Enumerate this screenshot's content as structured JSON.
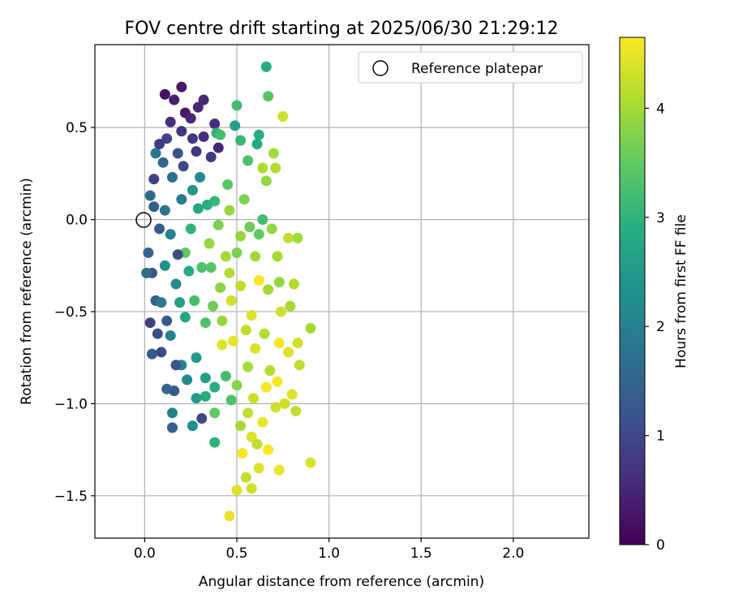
{
  "chart_data": {
    "type": "scatter",
    "title": "FOV centre drift starting at 2025/06/30 21:29:12",
    "xlabel": "Angular distance from reference (arcmin)",
    "ylabel": "Rotation from reference (arcmin)",
    "xlim": [
      -0.27,
      2.41
    ],
    "ylim": [
      -1.73,
      0.95
    ],
    "xticks": [
      0.0,
      0.5,
      1.0,
      1.5,
      2.0
    ],
    "yticks": [
      -1.5,
      -1.0,
      -0.5,
      0.0,
      0.5
    ],
    "xtick_labels": [
      "0.0",
      "0.5",
      "1.0",
      "1.5",
      "2.0"
    ],
    "ytick_labels": [
      "−1.5",
      "−1.0",
      "−0.5",
      "0.0",
      "0.5"
    ],
    "grid": true,
    "legend": {
      "position": "top-right",
      "entries": [
        "Reference platepar"
      ]
    },
    "reference_point": {
      "x": 0.0,
      "y": 0.0,
      "label": "Reference platepar"
    },
    "colorbar": {
      "label": "Hours from first FF file",
      "range": [
        0,
        4.65
      ],
      "ticks": [
        0,
        1,
        2,
        3,
        4
      ],
      "tick_labels": [
        "0",
        "1",
        "2",
        "3",
        "4"
      ],
      "colormap": "viridis"
    },
    "scatter_description_points": [
      {
        "x": 0.11,
        "y": 0.68,
        "h": 0.2
      },
      {
        "x": 0.2,
        "y": 0.72,
        "h": 0.3
      },
      {
        "x": 0.16,
        "y": 0.65,
        "h": 0.4
      },
      {
        "x": 0.22,
        "y": 0.58,
        "h": 0.3
      },
      {
        "x": 0.32,
        "y": 0.65,
        "h": 0.5
      },
      {
        "x": 0.29,
        "y": 0.61,
        "h": 0.5
      },
      {
        "x": 0.14,
        "y": 0.53,
        "h": 0.6
      },
      {
        "x": 0.38,
        "y": 0.52,
        "h": 0.6
      },
      {
        "x": 0.25,
        "y": 0.55,
        "h": 0.5
      },
      {
        "x": 0.2,
        "y": 0.48,
        "h": 0.7
      },
      {
        "x": 0.4,
        "y": 0.39,
        "h": 0.5
      },
      {
        "x": 0.32,
        "y": 0.45,
        "h": 0.6
      },
      {
        "x": 0.08,
        "y": 0.41,
        "h": 0.8
      },
      {
        "x": 0.12,
        "y": 0.44,
        "h": 0.9
      },
      {
        "x": 0.05,
        "y": 0.22,
        "h": 0.9
      },
      {
        "x": 0.28,
        "y": 0.37,
        "h": 0.7
      },
      {
        "x": 0.36,
        "y": 0.34,
        "h": 0.8
      },
      {
        "x": 0.66,
        "y": 0.83,
        "h": 2.8
      },
      {
        "x": 0.5,
        "y": 0.62,
        "h": 3.2
      },
      {
        "x": 0.67,
        "y": 0.67,
        "h": 3.4
      },
      {
        "x": 0.75,
        "y": 0.56,
        "h": 4.3
      },
      {
        "x": 0.49,
        "y": 0.51,
        "h": 2.6
      },
      {
        "x": 0.62,
        "y": 0.46,
        "h": 2.9
      },
      {
        "x": 0.52,
        "y": 0.43,
        "h": 3.1
      },
      {
        "x": 0.61,
        "y": 0.41,
        "h": 2.8
      },
      {
        "x": 0.39,
        "y": 0.47,
        "h": 3.0
      },
      {
        "x": 0.41,
        "y": 0.46,
        "h": 3.2
      },
      {
        "x": 0.7,
        "y": 0.36,
        "h": 4.0
      },
      {
        "x": 0.56,
        "y": 0.32,
        "h": 3.3
      },
      {
        "x": 0.71,
        "y": 0.28,
        "h": 4.1
      },
      {
        "x": 0.64,
        "y": 0.28,
        "h": 4.1
      },
      {
        "x": 0.66,
        "y": 0.21,
        "h": 3.9
      },
      {
        "x": 0.06,
        "y": 0.36,
        "h": 1.8
      },
      {
        "x": 0.1,
        "y": 0.31,
        "h": 1.5
      },
      {
        "x": 0.18,
        "y": 0.36,
        "h": 1.2
      },
      {
        "x": 0.03,
        "y": 0.13,
        "h": 1.6
      },
      {
        "x": 0.05,
        "y": 0.07,
        "h": 1.4
      },
      {
        "x": 0.08,
        "y": -0.05,
        "h": 1.3
      },
      {
        "x": 0.02,
        "y": -0.18,
        "h": 1.5
      },
      {
        "x": 0.04,
        "y": -0.29,
        "h": 1.2
      },
      {
        "x": 0.01,
        "y": -0.29,
        "h": 1.6
      },
      {
        "x": 0.06,
        "y": -0.44,
        "h": 1.4
      },
      {
        "x": 0.03,
        "y": -0.56,
        "h": 0.9
      },
      {
        "x": 0.07,
        "y": -0.62,
        "h": 1.1
      },
      {
        "x": 0.04,
        "y": -0.73,
        "h": 1.3
      },
      {
        "x": 0.09,
        "y": -0.72,
        "h": 1.0
      },
      {
        "x": 0.12,
        "y": -0.92,
        "h": 1.5
      },
      {
        "x": 0.16,
        "y": -0.93,
        "h": 1.3
      },
      {
        "x": 0.15,
        "y": -1.13,
        "h": 1.4
      },
      {
        "x": 0.15,
        "y": -1.05,
        "h": 2.0
      },
      {
        "x": 0.26,
        "y": -1.12,
        "h": 2.3
      },
      {
        "x": 0.31,
        "y": -1.08,
        "h": 1.0
      },
      {
        "x": 0.38,
        "y": -1.21,
        "h": 3.0
      },
      {
        "x": 0.38,
        "y": -1.05,
        "h": 3.5
      },
      {
        "x": 0.33,
        "y": -0.96,
        "h": 2.8
      },
      {
        "x": 0.47,
        "y": -0.98,
        "h": 3.3
      },
      {
        "x": 0.46,
        "y": -1.61,
        "h": 4.5
      },
      {
        "x": 0.5,
        "y": -1.47,
        "h": 4.4
      },
      {
        "x": 0.55,
        "y": -1.4,
        "h": 4.2
      },
      {
        "x": 0.58,
        "y": -1.46,
        "h": 4.3
      },
      {
        "x": 0.62,
        "y": -1.35,
        "h": 4.4
      },
      {
        "x": 0.73,
        "y": -1.36,
        "h": 4.5
      },
      {
        "x": 0.9,
        "y": -1.32,
        "h": 4.4
      },
      {
        "x": 0.53,
        "y": -1.27,
        "h": 4.6
      },
      {
        "x": 0.67,
        "y": -1.25,
        "h": 4.6
      },
      {
        "x": 0.58,
        "y": -1.18,
        "h": 4.4
      },
      {
        "x": 0.64,
        "y": -1.1,
        "h": 4.5
      },
      {
        "x": 0.56,
        "y": -1.05,
        "h": 4.2
      },
      {
        "x": 0.76,
        "y": -1.0,
        "h": 4.3
      },
      {
        "x": 0.82,
        "y": -1.04,
        "h": 4.2
      },
      {
        "x": 0.8,
        "y": -0.95,
        "h": 4.4
      },
      {
        "x": 0.84,
        "y": -0.79,
        "h": 4.2
      },
      {
        "x": 0.9,
        "y": -0.59,
        "h": 4.0
      },
      {
        "x": 0.83,
        "y": -0.67,
        "h": 4.3
      },
      {
        "x": 0.78,
        "y": -0.72,
        "h": 4.4
      },
      {
        "x": 0.72,
        "y": -0.88,
        "h": 4.6
      },
      {
        "x": 0.68,
        "y": -0.82,
        "h": 4.1
      },
      {
        "x": 0.67,
        "y": -0.38,
        "h": 4.0
      },
      {
        "x": 0.74,
        "y": -0.5,
        "h": 4.3
      },
      {
        "x": 0.79,
        "y": -0.47,
        "h": 4.0
      },
      {
        "x": 0.81,
        "y": -0.35,
        "h": 4.1
      },
      {
        "x": 0.73,
        "y": -0.34,
        "h": 3.9
      },
      {
        "x": 0.72,
        "y": -0.2,
        "h": 4.0
      },
      {
        "x": 0.83,
        "y": -0.1,
        "h": 4.0
      },
      {
        "x": 0.78,
        "y": -0.1,
        "h": 4.2
      },
      {
        "x": 0.69,
        "y": -0.05,
        "h": 3.9
      },
      {
        "x": 0.62,
        "y": -0.08,
        "h": 3.5
      },
      {
        "x": 0.57,
        "y": -0.04,
        "h": 3.6
      },
      {
        "x": 0.5,
        "y": -0.18,
        "h": 3.7
      },
      {
        "x": 0.47,
        "y": -0.44,
        "h": 4.3
      },
      {
        "x": 0.48,
        "y": -0.66,
        "h": 4.5
      },
      {
        "x": 0.58,
        "y": -0.52,
        "h": 4.4
      },
      {
        "x": 0.62,
        "y": -0.33,
        "h": 4.6
      },
      {
        "x": 0.56,
        "y": -0.8,
        "h": 4.0
      },
      {
        "x": 0.42,
        "y": -0.68,
        "h": 4.4
      },
      {
        "x": 0.33,
        "y": -0.86,
        "h": 2.6
      },
      {
        "x": 0.28,
        "y": -0.75,
        "h": 2.5
      },
      {
        "x": 0.2,
        "y": -0.79,
        "h": 2.1
      },
      {
        "x": 0.14,
        "y": -0.63,
        "h": 2.0
      },
      {
        "x": 0.22,
        "y": -0.53,
        "h": 2.7
      },
      {
        "x": 0.27,
        "y": -0.44,
        "h": 3.2
      },
      {
        "x": 0.37,
        "y": -0.47,
        "h": 3.6
      },
      {
        "x": 0.33,
        "y": -0.56,
        "h": 3.3
      },
      {
        "x": 0.41,
        "y": -0.37,
        "h": 3.8
      },
      {
        "x": 0.31,
        "y": -0.26,
        "h": 3.3
      },
      {
        "x": 0.22,
        "y": -0.18,
        "h": 3.5
      },
      {
        "x": 0.25,
        "y": -0.05,
        "h": 3.0
      },
      {
        "x": 0.35,
        "y": -0.13,
        "h": 3.9
      },
      {
        "x": 0.44,
        "y": -0.2,
        "h": 4.0
      },
      {
        "x": 0.4,
        "y": -0.03,
        "h": 3.7
      },
      {
        "x": 0.46,
        "y": 0.05,
        "h": 3.9
      },
      {
        "x": 0.38,
        "y": 0.1,
        "h": 3.1
      },
      {
        "x": 0.29,
        "y": 0.06,
        "h": 2.7
      },
      {
        "x": 0.26,
        "y": 0.16,
        "h": 2.4
      },
      {
        "x": 0.2,
        "y": 0.11,
        "h": 1.9
      },
      {
        "x": 0.15,
        "y": 0.23,
        "h": 1.7
      },
      {
        "x": 0.11,
        "y": 0.05,
        "h": 1.8
      },
      {
        "x": 0.14,
        "y": -0.08,
        "h": 2.0
      },
      {
        "x": 0.11,
        "y": -0.25,
        "h": 2.3
      },
      {
        "x": 0.17,
        "y": -0.35,
        "h": 2.2
      },
      {
        "x": 0.09,
        "y": -0.45,
        "h": 1.9
      },
      {
        "x": 0.19,
        "y": -0.45,
        "h": 2.6
      },
      {
        "x": 0.24,
        "y": -0.28,
        "h": 2.8
      },
      {
        "x": 0.45,
        "y": 0.19,
        "h": 3.4
      },
      {
        "x": 0.54,
        "y": 0.11,
        "h": 3.7
      },
      {
        "x": 0.52,
        "y": -0.09,
        "h": 3.9
      },
      {
        "x": 0.6,
        "y": -0.2,
        "h": 4.0
      },
      {
        "x": 0.52,
        "y": -0.36,
        "h": 4.2
      },
      {
        "x": 0.55,
        "y": -0.6,
        "h": 4.2
      },
      {
        "x": 0.6,
        "y": -0.7,
        "h": 4.4
      },
      {
        "x": 0.65,
        "y": -0.62,
        "h": 4.1
      },
      {
        "x": 0.44,
        "y": -0.85,
        "h": 3.2
      },
      {
        "x": 0.5,
        "y": -0.9,
        "h": 3.8
      },
      {
        "x": 0.38,
        "y": -0.91,
        "h": 2.9
      },
      {
        "x": 0.28,
        "y": -0.97,
        "h": 2.5
      },
      {
        "x": 0.23,
        "y": -0.87,
        "h": 2.2
      },
      {
        "x": 0.17,
        "y": -0.79,
        "h": 1.2
      },
      {
        "x": 0.12,
        "y": -0.55,
        "h": 1.3
      },
      {
        "x": 0.18,
        "y": -0.19,
        "h": 1.1
      },
      {
        "x": 0.21,
        "y": 0.29,
        "h": 1.0
      },
      {
        "x": 0.26,
        "y": 0.44,
        "h": 0.8
      },
      {
        "x": 0.3,
        "y": 0.23,
        "h": 2.2
      },
      {
        "x": 0.34,
        "y": 0.08,
        "h": 2.9
      },
      {
        "x": 0.36,
        "y": -0.26,
        "h": 3.4
      },
      {
        "x": 0.42,
        "y": -0.55,
        "h": 3.9
      },
      {
        "x": 0.46,
        "y": -0.29,
        "h": 4.1
      },
      {
        "x": 0.64,
        "y": 0.0,
        "h": 3.2
      },
      {
        "x": 0.73,
        "y": -0.67,
        "h": 4.6
      },
      {
        "x": 0.59,
        "y": -0.97,
        "h": 4.3
      },
      {
        "x": 0.66,
        "y": -0.91,
        "h": 4.6
      },
      {
        "x": 0.71,
        "y": -1.02,
        "h": 4.3
      },
      {
        "x": 0.52,
        "y": -1.12,
        "h": 4.0
      },
      {
        "x": 0.61,
        "y": -1.22,
        "h": 4.2
      }
    ]
  }
}
